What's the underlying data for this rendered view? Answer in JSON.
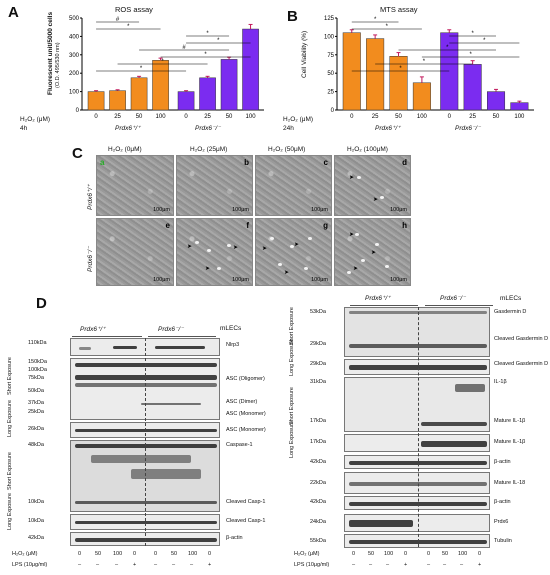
{
  "panelA": {
    "letter": "A",
    "title": "ROS assay",
    "ylabel": "Fluorescent unit/5000 cells",
    "ylabel2": "(O.D. 495/530 nm)",
    "xlabel": "H₂O₂ (μM)",
    "time": "4h",
    "doses": [
      "0",
      "25",
      "50",
      "100",
      "0",
      "25",
      "50",
      "100"
    ],
    "genotypes": [
      "Prdx6⁺/⁺",
      "Prdx6⁻/⁻"
    ],
    "yticks": [
      "0",
      "100",
      "200",
      "300",
      "400",
      "500"
    ],
    "sig_marks": [
      "#",
      "*",
      "*",
      "*",
      "#",
      "*",
      "*",
      "*"
    ]
  },
  "panelB": {
    "letter": "B",
    "title": "MTS assay",
    "ylabel": "Cell Viability (%)",
    "xlabel": "H₂O₂ (μM)",
    "time": "24h",
    "doses": [
      "0",
      "25",
      "50",
      "100",
      "0",
      "25",
      "50",
      "100"
    ],
    "genotypes": [
      "Prdx6⁺/⁺",
      "Prdx6⁻/⁻"
    ],
    "yticks": [
      "0",
      "25",
      "50",
      "75",
      "100",
      "125"
    ],
    "sig_marks": [
      "*",
      "*",
      "*",
      "*",
      "*",
      "*",
      "*",
      "*"
    ]
  },
  "chart_data": [
    {
      "type": "bar",
      "title": "ROS assay",
      "ylabel": "Fluorescent unit/5000 cells (O.D. 495/530 nm)",
      "xlabel": "H₂O₂ (μM)",
      "categories": [
        "0",
        "25",
        "50",
        "100"
      ],
      "series": [
        {
          "name": "Prdx6⁺/⁺",
          "values": [
            100,
            105,
            175,
            270
          ],
          "errors": [
            5,
            5,
            8,
            12
          ],
          "color": "#f28c1e"
        },
        {
          "name": "Prdx6⁻/⁻",
          "values": [
            100,
            175,
            275,
            440
          ],
          "errors": [
            5,
            8,
            12,
            25
          ],
          "color": "#7b2cf0"
        }
      ],
      "ylim": [
        0,
        500
      ]
    },
    {
      "type": "bar",
      "title": "MTS assay",
      "ylabel": "Cell Viability (%)",
      "xlabel": "H₂O₂ (μM)",
      "categories": [
        "0",
        "25",
        "50",
        "100"
      ],
      "series": [
        {
          "name": "Prdx6⁺/⁺",
          "values": [
            105,
            97,
            73,
            37
          ],
          "errors": [
            4,
            5,
            5,
            8
          ],
          "color": "#f28c1e"
        },
        {
          "name": "Prdx6⁻/⁻",
          "values": [
            105,
            62,
            25,
            10
          ],
          "errors": [
            4,
            5,
            3,
            2
          ],
          "color": "#7b2cf0"
        }
      ],
      "ylim": [
        0,
        125
      ]
    }
  ],
  "panelC": {
    "letter": "C",
    "col_headers": [
      "H₂O₂ (0μM)",
      "H₂O₂ (25μM)",
      "H₂O₂ (50μM)",
      "H₂O₂ (100μM)"
    ],
    "row_labels": [
      "Prdx6⁺/⁺",
      "Prdx6⁻/⁻"
    ],
    "tiles": [
      "a",
      "b",
      "c",
      "d",
      "e",
      "f",
      "g",
      "h"
    ],
    "scale": "100μm"
  },
  "panelD": {
    "letter": "D",
    "left": {
      "genotypes": [
        "Prdx6⁺/⁺",
        "Prdx6⁻/⁻"
      ],
      "cell": "mLECs",
      "mw": [
        "110kDa",
        "150kDa",
        "100kDa",
        "75kDa",
        "50kDa",
        "37kDa",
        "25kDa",
        "26kDa",
        "48kDa",
        "10kDa",
        "10kDa",
        "42kDa"
      ],
      "exposure": [
        "Short Exposure",
        "Long Exposure",
        "Short Exposure",
        "Long Exposure"
      ],
      "right_labels": [
        "Nlrp3",
        "ASC (Oligomer)",
        "ASC (Dimer)",
        "ASC (Monomer)",
        "ASC (Monomer)",
        "Caspase-1",
        "Cleaved Casp-1",
        "Cleaved Casp-1",
        "β-actin"
      ],
      "h2o2_label": "H₂O₂ (μM)",
      "lps_label": "LPS (10μg/ml)",
      "h2o2": [
        "0",
        "50",
        "100",
        "0",
        "0",
        "50",
        "100",
        "0"
      ],
      "lps": [
        "–",
        "–",
        "–",
        "+",
        "–",
        "–",
        "–",
        "+"
      ]
    },
    "right": {
      "genotypes": [
        "Prdx6⁺/⁺",
        "Prdx6⁻/⁻"
      ],
      "cell": "mLECs",
      "mw": [
        "53kDa",
        "29kDa",
        "29kDa",
        "31kDa",
        "17kDa",
        "17kDa",
        "42kDa",
        "22kDa",
        "42kDa",
        "24kDa",
        "55kDa"
      ],
      "exposure": [
        "Short Exposure",
        "Long Exposure",
        "Short Exposure",
        "Long Exposure"
      ],
      "right_labels": [
        "Gasdermin D",
        "Cleaved Gasdermin D",
        "Cleaved Gasdermin D",
        "IL-1β",
        "Mature IL-1β",
        "Mature IL-1β",
        "β-actin",
        "Mature IL-18",
        "β-actin",
        "Prdx6",
        "Tubulin"
      ],
      "h2o2_label": "H₂O₂ (μM)",
      "lps_label": "LPS (10μg/ml)",
      "h2o2": [
        "0",
        "50",
        "100",
        "0",
        "0",
        "50",
        "100",
        "0"
      ],
      "lps": [
        "–",
        "–",
        "–",
        "+",
        "–",
        "–",
        "–",
        "+"
      ]
    }
  }
}
